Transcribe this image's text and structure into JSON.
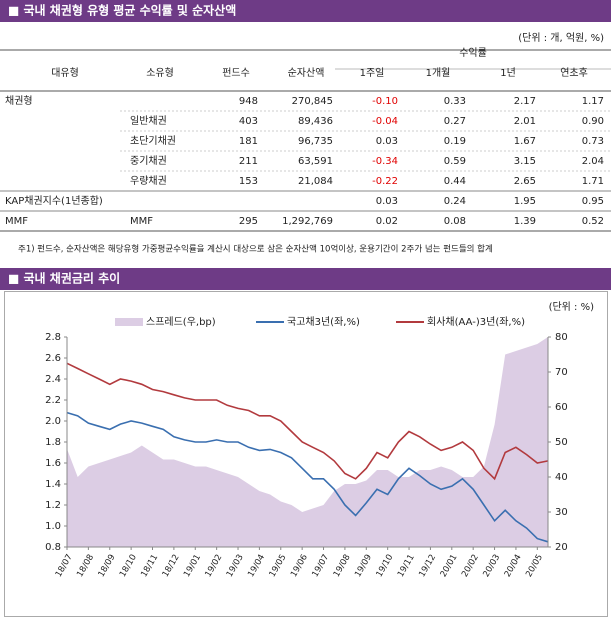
{
  "section1": {
    "title": "■ 국내 채권형 유형 평균 수익률 및 순자산액",
    "unit": "(단위 : 개, 억원, %)"
  },
  "table": {
    "negative_color": "#e00000",
    "headers": {
      "major": "대유형",
      "minor": "소유형",
      "funds": "펀드수",
      "assets": "순자산액",
      "returns": "수익률",
      "w1": "1주일",
      "m1": "1개월",
      "y1": "1년",
      "ytd": "연초후"
    },
    "rows": [
      {
        "major": "채권형",
        "funds": "948",
        "assets": "270,845",
        "w1": "-0.10",
        "m1": "0.33",
        "y1": "2.17",
        "ytd": "1.17"
      },
      {
        "minor": "일반채권",
        "funds": "403",
        "assets": "89,436",
        "w1": "-0.04",
        "m1": "0.27",
        "y1": "2.01",
        "ytd": "0.90"
      },
      {
        "minor": "초단기채권",
        "funds": "181",
        "assets": "96,735",
        "w1": "0.03",
        "m1": "0.19",
        "y1": "1.67",
        "ytd": "0.73"
      },
      {
        "minor": "중기채권",
        "funds": "211",
        "assets": "63,591",
        "w1": "-0.34",
        "m1": "0.59",
        "y1": "3.15",
        "ytd": "2.04"
      },
      {
        "minor": "우량채권",
        "funds": "153",
        "assets": "21,084",
        "w1": "-0.22",
        "m1": "0.44",
        "y1": "2.65",
        "ytd": "1.71"
      },
      {
        "major": "KAP채권지수(1년종합)",
        "w1": "0.03",
        "m1": "0.24",
        "y1": "1.95",
        "ytd": "0.95"
      },
      {
        "major": "MMF",
        "minor": "MMF",
        "funds": "295",
        "assets": "1,292,769",
        "w1": "0.02",
        "m1": "0.08",
        "y1": "1.39",
        "ytd": "0.52"
      }
    ]
  },
  "footnote": "주1) 펀드수, 순자산액은 해당유형 가중평균수익률을 계산시 대상으로 삼은 순자산액 10억이상, 운용기간이 2주가 넘는 펀드들의 합계",
  "section2": {
    "title": "■ 국내 채권금리 추이",
    "unit": "(단위 : %)"
  },
  "chart_data": {
    "type": "combo",
    "categories": [
      "18/07",
      null,
      "18/08",
      null,
      "18/09",
      null,
      "18/10",
      null,
      "18/11",
      null,
      "18/12",
      null,
      "19/01",
      null,
      "19/02",
      null,
      "19/03",
      null,
      "19/04",
      null,
      "19/05",
      null,
      "19/06",
      null,
      "19/07",
      null,
      "19/08",
      null,
      "19/09",
      null,
      "19/10",
      null,
      "19/11",
      null,
      "19/12",
      null,
      "20/01",
      null,
      "20/02",
      null,
      "20/03",
      null,
      "20/04",
      null,
      "20/05",
      null
    ],
    "ylim": [
      0.8,
      2.8
    ],
    "yticks": [
      0.8,
      {
        "value": 1.0,
        "label": "1.0"
      },
      1.2,
      1.4,
      1.6,
      1.8,
      {
        "value": 2.0,
        "label": "2.0"
      },
      2.2,
      2.4,
      2.6,
      2.8
    ],
    "y2lim": [
      20,
      80
    ],
    "y2ticks": [
      20,
      30,
      40,
      50,
      60,
      70,
      80
    ],
    "series": [
      {
        "name": "스프레드(우,bp)",
        "type": "area",
        "axis": "y2",
        "color": "#dccde4",
        "values": [
          48,
          40,
          43,
          44,
          45,
          46,
          47,
          49,
          47,
          45,
          45,
          44,
          43,
          43,
          42,
          41,
          40,
          38,
          36,
          35,
          33,
          32,
          30,
          31,
          32,
          36,
          38,
          38,
          39,
          42,
          42,
          40,
          40,
          42,
          42,
          43,
          42,
          40,
          40,
          43,
          55,
          75,
          76,
          77,
          78,
          80
        ]
      },
      {
        "name": "국고채3년(좌,%)",
        "type": "line",
        "axis": "y",
        "color": "#3a6fb0",
        "values": [
          2.08,
          2.05,
          1.98,
          1.95,
          1.92,
          1.97,
          2.0,
          1.98,
          1.95,
          1.92,
          1.85,
          1.82,
          1.8,
          1.8,
          1.82,
          1.8,
          1.8,
          1.75,
          1.72,
          1.73,
          1.7,
          1.65,
          1.55,
          1.45,
          1.45,
          1.35,
          1.2,
          1.1,
          1.22,
          1.35,
          1.3,
          1.45,
          1.55,
          1.48,
          1.4,
          1.35,
          1.38,
          1.45,
          1.35,
          1.2,
          1.05,
          1.15,
          1.05,
          0.98,
          0.88,
          0.85
        ]
      },
      {
        "name": "회사채(AA-)3년(좌,%)",
        "type": "line",
        "axis": "y",
        "color": "#b23a3e",
        "values": [
          2.55,
          2.5,
          2.45,
          2.4,
          2.35,
          2.4,
          2.38,
          2.35,
          2.3,
          2.28,
          2.25,
          2.22,
          2.2,
          2.2,
          2.2,
          2.15,
          2.12,
          2.1,
          2.05,
          2.05,
          2.0,
          1.9,
          1.8,
          1.75,
          1.7,
          1.62,
          1.5,
          1.45,
          1.55,
          1.7,
          1.65,
          1.8,
          1.9,
          1.85,
          1.78,
          1.72,
          1.75,
          1.8,
          1.72,
          1.55,
          1.45,
          1.7,
          1.75,
          1.68,
          1.6,
          1.62
        ]
      }
    ]
  }
}
